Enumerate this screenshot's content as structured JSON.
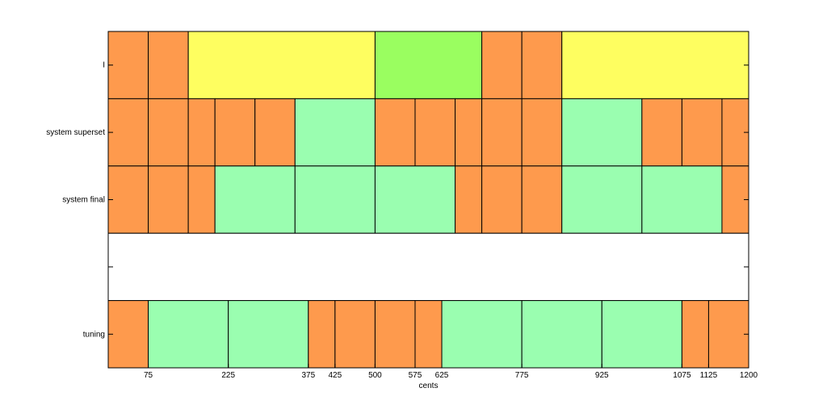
{
  "chart_data": {
    "type": "timeline",
    "xlabel": "cents",
    "xlim": [
      0,
      1200
    ],
    "x_ticks": [
      75,
      225,
      375,
      425,
      500,
      575,
      625,
      775,
      925,
      1075,
      1125,
      1200
    ],
    "colors": {
      "orange": "#fe9a4d",
      "yellow": "#fefe60",
      "green": "#9afe60",
      "mint": "#9afeb0",
      "blank": "#ffffff"
    },
    "rows": [
      {
        "label": "I",
        "segments": [
          {
            "start": 0,
            "end": 75,
            "color": "orange"
          },
          {
            "start": 75,
            "end": 150,
            "color": "orange"
          },
          {
            "start": 150,
            "end": 500,
            "color": "yellow"
          },
          {
            "start": 500,
            "end": 700,
            "color": "green"
          },
          {
            "start": 700,
            "end": 775,
            "color": "orange"
          },
          {
            "start": 775,
            "end": 850,
            "color": "orange"
          },
          {
            "start": 850,
            "end": 1200,
            "color": "yellow"
          }
        ]
      },
      {
        "label": "system superset",
        "segments": [
          {
            "start": 0,
            "end": 75,
            "color": "orange"
          },
          {
            "start": 75,
            "end": 150,
            "color": "orange"
          },
          {
            "start": 150,
            "end": 200,
            "color": "orange"
          },
          {
            "start": 200,
            "end": 275,
            "color": "orange"
          },
          {
            "start": 275,
            "end": 350,
            "color": "orange"
          },
          {
            "start": 350,
            "end": 500,
            "color": "mint"
          },
          {
            "start": 500,
            "end": 575,
            "color": "orange"
          },
          {
            "start": 575,
            "end": 650,
            "color": "orange"
          },
          {
            "start": 650,
            "end": 700,
            "color": "orange"
          },
          {
            "start": 700,
            "end": 775,
            "color": "orange"
          },
          {
            "start": 775,
            "end": 850,
            "color": "orange"
          },
          {
            "start": 850,
            "end": 1000,
            "color": "mint"
          },
          {
            "start": 1000,
            "end": 1075,
            "color": "orange"
          },
          {
            "start": 1075,
            "end": 1150,
            "color": "orange"
          },
          {
            "start": 1150,
            "end": 1200,
            "color": "orange"
          }
        ]
      },
      {
        "label": "system final",
        "segments": [
          {
            "start": 0,
            "end": 75,
            "color": "orange"
          },
          {
            "start": 75,
            "end": 150,
            "color": "orange"
          },
          {
            "start": 150,
            "end": 200,
            "color": "orange"
          },
          {
            "start": 200,
            "end": 350,
            "color": "mint"
          },
          {
            "start": 350,
            "end": 500,
            "color": "mint"
          },
          {
            "start": 500,
            "end": 650,
            "color": "mint"
          },
          {
            "start": 650,
            "end": 700,
            "color": "orange"
          },
          {
            "start": 700,
            "end": 775,
            "color": "orange"
          },
          {
            "start": 775,
            "end": 850,
            "color": "orange"
          },
          {
            "start": 850,
            "end": 1000,
            "color": "mint"
          },
          {
            "start": 1000,
            "end": 1150,
            "color": "mint"
          },
          {
            "start": 1150,
            "end": 1200,
            "color": "orange"
          }
        ]
      },
      {
        "label": "",
        "segments": [
          {
            "start": 0,
            "end": 1200,
            "color": "blank"
          }
        ]
      },
      {
        "label": "tuning",
        "segments": [
          {
            "start": 0,
            "end": 75,
            "color": "orange"
          },
          {
            "start": 75,
            "end": 225,
            "color": "mint"
          },
          {
            "start": 225,
            "end": 375,
            "color": "mint"
          },
          {
            "start": 375,
            "end": 425,
            "color": "orange"
          },
          {
            "start": 425,
            "end": 500,
            "color": "orange"
          },
          {
            "start": 500,
            "end": 575,
            "color": "orange"
          },
          {
            "start": 575,
            "end": 625,
            "color": "orange"
          },
          {
            "start": 625,
            "end": 775,
            "color": "mint"
          },
          {
            "start": 775,
            "end": 925,
            "color": "mint"
          },
          {
            "start": 925,
            "end": 1075,
            "color": "mint"
          },
          {
            "start": 1075,
            "end": 1125,
            "color": "orange"
          },
          {
            "start": 1125,
            "end": 1200,
            "color": "orange"
          }
        ]
      }
    ]
  }
}
